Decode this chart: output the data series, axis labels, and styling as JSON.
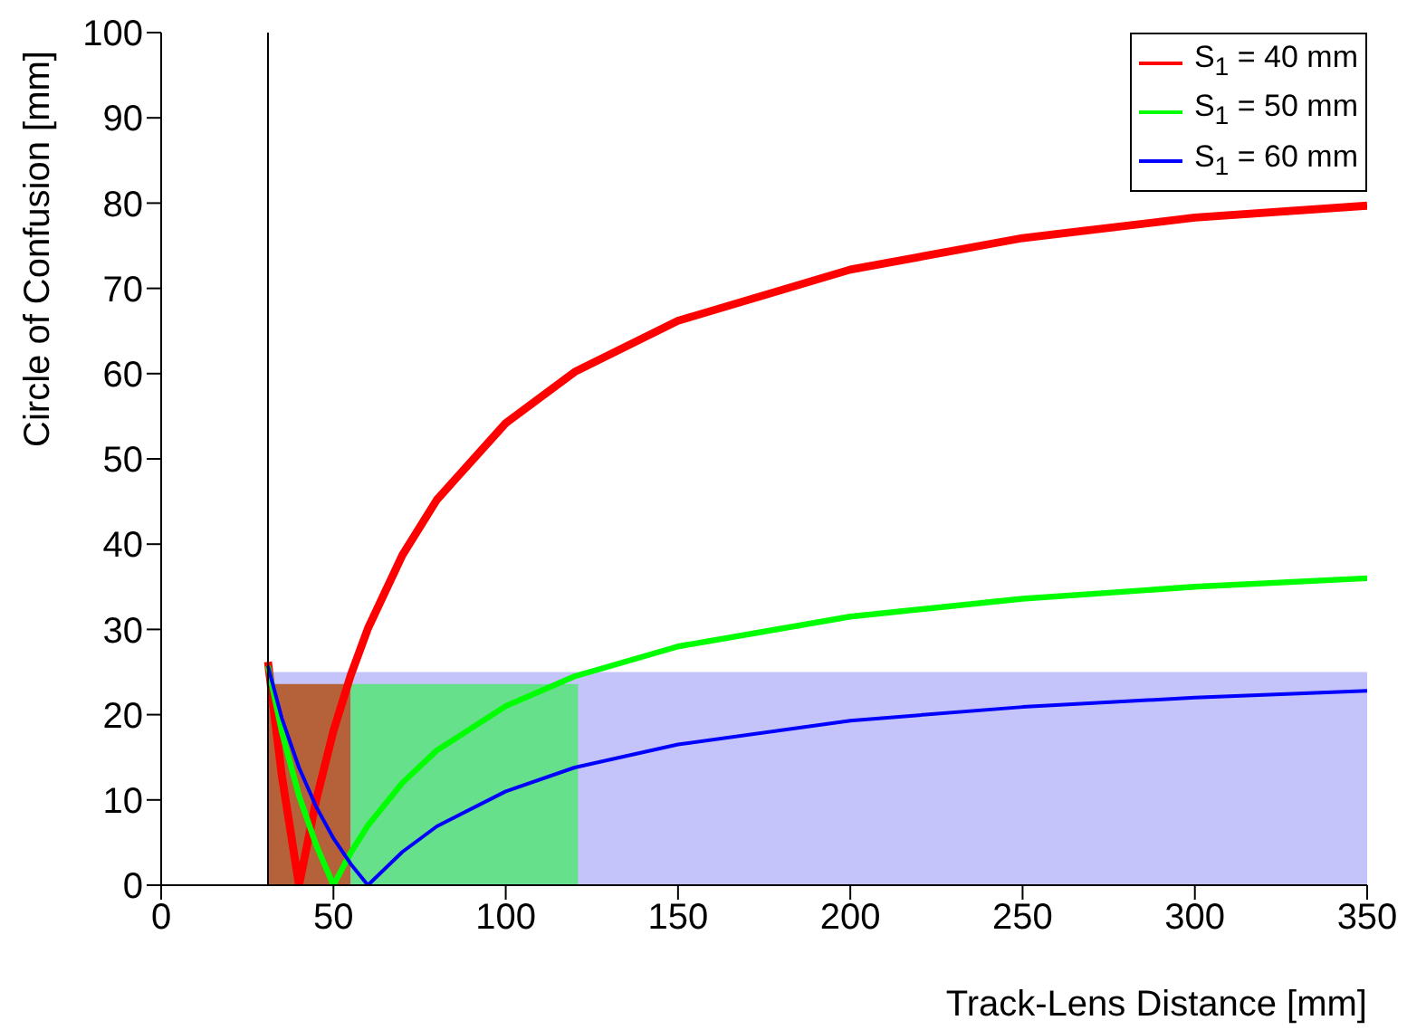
{
  "chart_data": {
    "type": "line",
    "xlabel": "Track-Lens Distance [mm]",
    "ylabel": "Circle of Confusion [mm]",
    "xlim": [
      0,
      350
    ],
    "ylim": [
      0,
      100
    ],
    "xticks": [
      0,
      50,
      100,
      150,
      200,
      250,
      300,
      350
    ],
    "yticks": [
      0,
      10,
      20,
      30,
      40,
      50,
      60,
      70,
      80,
      90,
      100
    ],
    "grid": false,
    "legend": "top right",
    "marker": "none",
    "line_style": "solid",
    "ref_lines": [
      {
        "axis": "x",
        "value": 31,
        "color": "#000000"
      }
    ],
    "series": [
      {
        "type": "area",
        "color": "#c4c4fa",
        "x": [
          31,
          350
        ],
        "values": [
          25,
          25
        ]
      },
      {
        "type": "area",
        "color": "#b5623a",
        "x": [
          31,
          55
        ],
        "values": [
          23.6,
          23.6
        ]
      },
      {
        "type": "area",
        "color": "#66e08a",
        "x": [
          55,
          121
        ],
        "values": [
          23.6,
          23.6
        ]
      },
      {
        "name": "S$_{1}$ = 40 mm",
        "color": "#ff0000",
        "x": [
          31,
          35,
          40,
          45,
          50,
          55,
          60,
          70,
          80,
          100,
          120,
          150,
          200,
          250,
          300,
          350
        ],
        "values": [
          26.2,
          12.9,
          0,
          10.0,
          18.1,
          24.6,
          30.1,
          38.7,
          45.2,
          54.2,
          60.2,
          66.2,
          72.2,
          75.9,
          78.3,
          79.7
        ]
      },
      {
        "name": "S$_{1}$ = 50 mm",
        "color": "#00ff00",
        "x": [
          31,
          35,
          40,
          45,
          50,
          55,
          60,
          70,
          80,
          100,
          120,
          150,
          200,
          250,
          300,
          350
        ],
        "values": [
          25.7,
          18.0,
          10.5,
          4.7,
          0,
          3.8,
          7.0,
          12.0,
          15.8,
          21.0,
          24.5,
          28.0,
          31.5,
          33.6,
          35.0,
          36.0
        ]
      },
      {
        "name": "S$_{1}$ = 60 mm",
        "color": "#0000ff",
        "x": [
          31,
          35,
          40,
          45,
          50,
          55,
          60,
          70,
          80,
          100,
          120,
          150,
          200,
          250,
          300,
          350
        ],
        "values": [
          25.7,
          19.6,
          13.8,
          9.2,
          5.5,
          2.5,
          0,
          3.9,
          6.9,
          11.0,
          13.8,
          16.5,
          19.3,
          20.9,
          22.0,
          22.8
        ]
      }
    ]
  }
}
